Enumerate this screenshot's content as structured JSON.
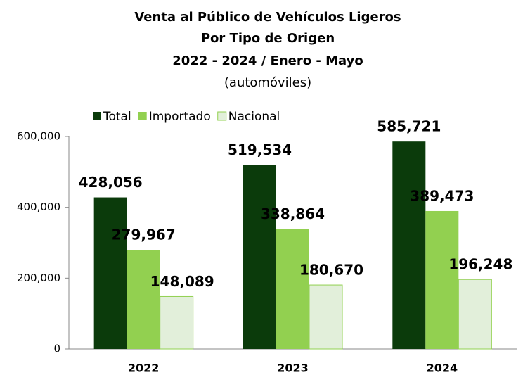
{
  "chart_data": {
    "type": "bar",
    "title": [
      "Venta al Público de Vehículos Ligeros",
      "Por Tipo de Origen",
      "2022 - 2024 / Enero - Mayo"
    ],
    "subtitle": "(automóviles)",
    "categories": [
      "2022",
      "2023",
      "2024"
    ],
    "series": [
      {
        "name": "Total",
        "color": "#0b3b0b",
        "label_color": "#0b3b0b",
        "values": [
          428056,
          519534,
          585721
        ],
        "value_labels": [
          "428,056",
          "519,534",
          "585,721"
        ]
      },
      {
        "name": "Importado",
        "color": "#92d050",
        "label_color": "#92d050",
        "values": [
          279967,
          338864,
          389473
        ],
        "value_labels": [
          "279,967",
          "338,864",
          "389,473"
        ]
      },
      {
        "name": "Nacional",
        "color": "#e2efda",
        "label_color": "#8c8c8c",
        "values": [
          148089,
          180670,
          196248
        ],
        "value_labels": [
          "148,089",
          "180,670",
          "196,248"
        ]
      }
    ],
    "ylim": [
      0,
      600000
    ],
    "yticks": [
      0,
      {
        "value": 200000,
        "label": "200,000"
      },
      {
        "value": 400000,
        "label": "400,000"
      },
      {
        "value": 600000,
        "label": "600,000"
      }
    ],
    "legend": "top-left"
  }
}
